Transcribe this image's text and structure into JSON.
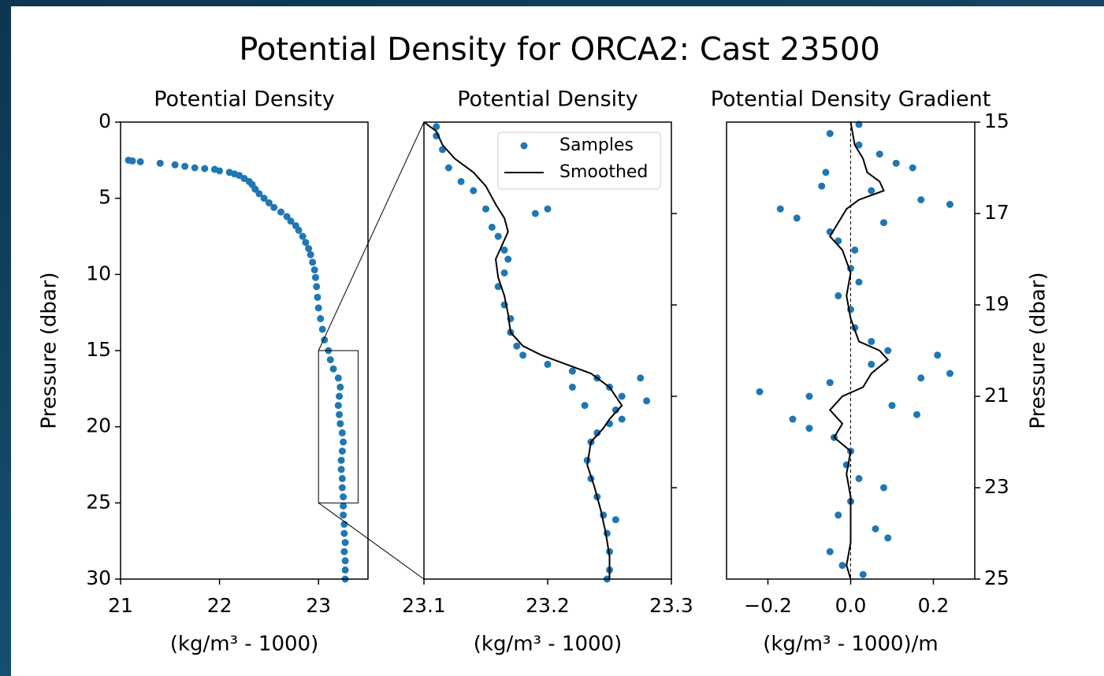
{
  "title": "Potential Density for ORCA2: Cast 23500",
  "chart_data": [
    {
      "type": "scatter",
      "title": "Potential Density",
      "xlabel": "(kg/m³ - 1000)",
      "ylabel": "Pressure (dbar)",
      "xlim": [
        21,
        23.5
      ],
      "ylim": [
        30,
        0
      ],
      "xticks": [
        21,
        22,
        23
      ],
      "yticks": [
        0,
        5,
        10,
        15,
        20,
        25,
        30
      ],
      "yaxis_side": "left",
      "zoom_box": {
        "x": [
          23,
          23.4
        ],
        "y": [
          15,
          25
        ]
      },
      "series": [
        {
          "name": "Samples",
          "mode": "markers",
          "color": "#1f77b4",
          "x": [
            21.08,
            21.12,
            21.2,
            21.4,
            21.55,
            21.65,
            21.75,
            21.85,
            21.95,
            22.0,
            22.1,
            22.15,
            22.2,
            22.25,
            22.3,
            22.33,
            22.36,
            22.4,
            22.45,
            22.5,
            22.55,
            22.62,
            22.68,
            22.72,
            22.77,
            22.8,
            22.84,
            22.87,
            22.9,
            22.92,
            22.94,
            22.96,
            22.97,
            22.98,
            22.99,
            23.0,
            23.02,
            23.04,
            23.06,
            23.1,
            23.12,
            23.15,
            23.2,
            23.22,
            23.21,
            23.2,
            23.21,
            23.22,
            23.24,
            23.25,
            23.24,
            23.23,
            23.23,
            23.24,
            23.24,
            23.25,
            23.25,
            23.25,
            23.26,
            23.26,
            23.27,
            23.26,
            23.27,
            23.27,
            23.27
          ],
          "y": [
            2.5,
            2.55,
            2.6,
            2.7,
            2.8,
            2.9,
            3.0,
            3.05,
            3.1,
            3.2,
            3.3,
            3.4,
            3.5,
            3.7,
            3.9,
            4.1,
            4.4,
            4.7,
            5.0,
            5.3,
            5.6,
            5.9,
            6.2,
            6.5,
            6.8,
            7.1,
            7.5,
            7.9,
            8.3,
            8.7,
            9.2,
            9.7,
            10.2,
            10.8,
            11.5,
            12.2,
            12.9,
            13.6,
            14.3,
            15.0,
            15.6,
            16.2,
            16.8,
            17.4,
            18.0,
            18.6,
            19.2,
            19.8,
            20.4,
            21.0,
            21.6,
            22.2,
            22.8,
            23.4,
            24.0,
            24.6,
            25.2,
            25.8,
            26.4,
            27.0,
            27.6,
            28.2,
            28.8,
            29.4,
            30.0
          ]
        }
      ]
    },
    {
      "type": "scatter",
      "title": "Potential Density",
      "xlabel": "(kg/m³ - 1000)",
      "xlim": [
        23.1,
        23.3
      ],
      "ylim": [
        25,
        15
      ],
      "xticks": [
        23.1,
        23.2,
        23.3
      ],
      "yticks": [
        17,
        19,
        21,
        23
      ],
      "show_ytick_labels": false,
      "yaxis_side": "right",
      "legend": "upper right",
      "series": [
        {
          "name": "Samples",
          "mode": "markers",
          "color": "#1f77b4",
          "x": [
            23.11,
            23.11,
            23.115,
            23.12,
            23.13,
            23.14,
            23.15,
            23.155,
            23.16,
            23.165,
            23.168,
            23.165,
            23.16,
            23.165,
            23.17,
            23.17,
            23.175,
            23.18,
            23.2,
            23.22,
            23.24,
            23.25,
            23.26,
            23.255,
            23.25,
            23.24,
            23.235,
            23.232,
            23.235,
            23.24,
            23.245,
            23.248,
            23.25,
            23.25,
            23.248,
            23.19,
            23.2,
            23.275,
            23.28,
            23.23,
            23.26,
            23.22,
            23.255
          ],
          "y": [
            15.1,
            15.3,
            15.6,
            16.0,
            16.3,
            16.5,
            16.9,
            17.3,
            17.5,
            17.8,
            18.0,
            18.3,
            18.6,
            19.0,
            19.3,
            19.6,
            19.9,
            20.1,
            20.3,
            20.45,
            20.6,
            20.8,
            21.0,
            21.3,
            21.6,
            21.8,
            22.0,
            22.4,
            22.8,
            23.2,
            23.6,
            24.0,
            24.4,
            24.8,
            25.0,
            17.0,
            16.9,
            20.6,
            21.1,
            21.2,
            21.5,
            20.8,
            23.7
          ]
        },
        {
          "name": "Smoothed",
          "mode": "line",
          "color": "#000000",
          "x": [
            23.1,
            23.11,
            23.115,
            23.125,
            23.14,
            23.15,
            23.158,
            23.165,
            23.168,
            23.163,
            23.158,
            23.16,
            23.165,
            23.168,
            23.17,
            23.18,
            23.195,
            23.215,
            23.235,
            23.25,
            23.26,
            23.25,
            23.245,
            23.235,
            23.232,
            23.238,
            23.243,
            23.247,
            23.25,
            23.25
          ],
          "y": [
            15,
            15.2,
            15.5,
            15.8,
            16.1,
            16.4,
            16.8,
            17.1,
            17.4,
            17.7,
            18.0,
            18.4,
            18.8,
            19.2,
            19.6,
            19.9,
            20.1,
            20.3,
            20.5,
            20.8,
            21.2,
            21.5,
            21.7,
            22.0,
            22.5,
            23.0,
            23.5,
            24.0,
            24.5,
            25.0
          ]
        }
      ]
    },
    {
      "type": "scatter",
      "title": "Potential Density Gradient",
      "xlabel": "(kg/m³ - 1000)/m",
      "ylabel": "Pressure (dbar)",
      "xlim": [
        -0.3,
        0.3
      ],
      "ylim": [
        25,
        15
      ],
      "xticks": [
        {
          "value": -0.2,
          "label": "−0.2"
        },
        {
          "value": 0,
          "label": "0.0"
        },
        {
          "value": 0.2,
          "label": "0.2"
        }
      ],
      "yticks": [
        15,
        17,
        19,
        21,
        23,
        25
      ],
      "yaxis_side": "right",
      "vlines": [
        0
      ],
      "series": [
        {
          "name": "Samples",
          "mode": "markers",
          "color": "#1f77b4",
          "x": [
            0.02,
            -0.05,
            0.02,
            0.07,
            0.11,
            0.15,
            -0.06,
            -0.07,
            0.05,
            0.17,
            0.24,
            -0.17,
            -0.13,
            0.08,
            -0.05,
            -0.03,
            0.01,
            0.0,
            0.02,
            -0.03,
            0.0,
            0.01,
            0.05,
            0.09,
            0.21,
            0.05,
            0.24,
            0.17,
            -0.05,
            -0.22,
            -0.1,
            0.1,
            0.16,
            -0.14,
            -0.1,
            -0.04,
            0.0,
            -0.01,
            0.02,
            0.08,
            0.0,
            -0.03,
            0.06,
            0.09,
            -0.05,
            -0.02,
            0.03
          ],
          "y": [
            15.05,
            15.25,
            15.5,
            15.7,
            15.9,
            16.0,
            16.1,
            16.4,
            16.5,
            16.7,
            16.8,
            16.9,
            17.1,
            17.2,
            17.4,
            17.6,
            17.8,
            18.2,
            18.5,
            18.8,
            19.1,
            19.5,
            19.8,
            20.0,
            20.1,
            20.3,
            20.5,
            20.6,
            20.7,
            20.9,
            21.0,
            21.2,
            21.4,
            21.5,
            21.7,
            21.9,
            22.2,
            22.5,
            22.8,
            23.0,
            23.3,
            23.6,
            23.9,
            24.1,
            24.4,
            24.7,
            24.9
          ]
        },
        {
          "name": "Smoothed",
          "mode": "line",
          "color": "#000000",
          "x": [
            0,
            0.01,
            0.03,
            0.04,
            0.07,
            0.08,
            0.02,
            -0.01,
            -0.03,
            -0.05,
            -0.02,
            0.0,
            -0.01,
            0.0,
            0.02,
            0.07,
            0.09,
            0.05,
            0.03,
            -0.02,
            -0.05,
            -0.02,
            -0.04,
            0.0,
            -0.01,
            0.0,
            0.0,
            0.0,
            -0.01,
            0.0
          ],
          "y": [
            15,
            15.5,
            15.8,
            16.1,
            16.3,
            16.5,
            16.7,
            16.9,
            17.2,
            17.5,
            17.8,
            18.3,
            18.8,
            19.3,
            19.8,
            20.0,
            20.2,
            20.5,
            20.8,
            21.0,
            21.3,
            21.6,
            21.9,
            22.2,
            22.7,
            23.2,
            23.7,
            24.2,
            24.7,
            25.0
          ]
        }
      ]
    }
  ]
}
